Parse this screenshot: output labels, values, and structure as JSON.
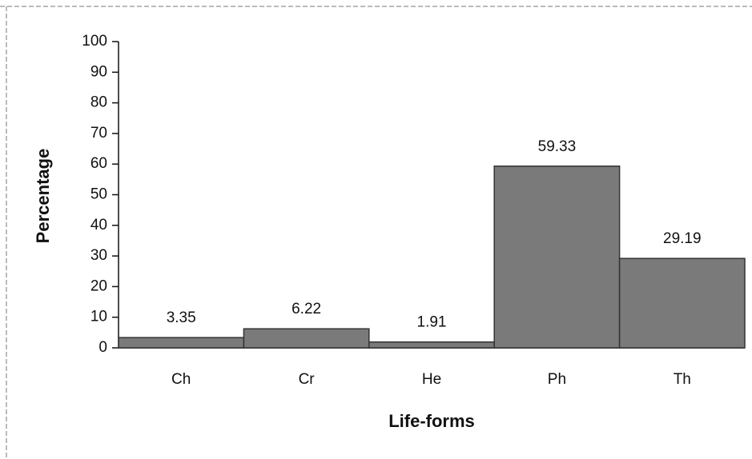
{
  "chart_data": {
    "type": "bar",
    "x_label": "Life-forms",
    "y_label": "Percentage",
    "categories": [
      "Ch",
      "Cr",
      "He",
      "Ph",
      "Th"
    ],
    "values": [
      3.35,
      6.22,
      1.91,
      59.33,
      29.19
    ],
    "color": "#7a7a7a",
    "ylim": [
      0,
      100
    ],
    "yticks": [
      0,
      10,
      20,
      30,
      40,
      50,
      60,
      70,
      80,
      90,
      100
    ],
    "grid": false
  }
}
